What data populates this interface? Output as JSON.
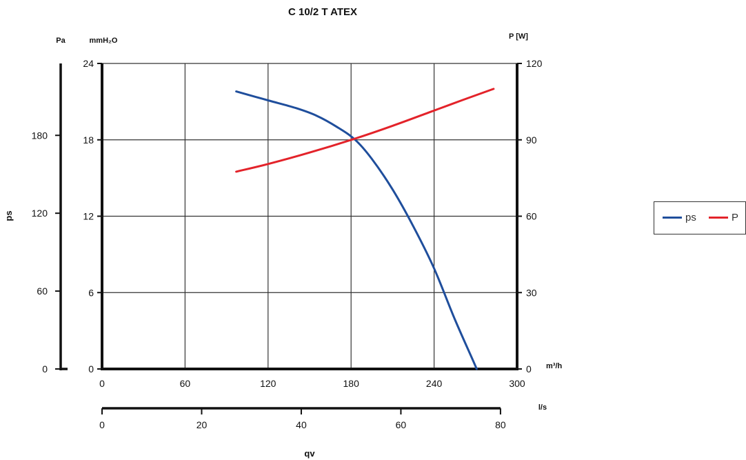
{
  "chart_data": {
    "type": "line",
    "title": "C 10/2 T ATEX",
    "xlabel": "qv",
    "ylabel": "ps",
    "left_unit_pa": "Pa",
    "left_unit_mmh2o": "mmH₂O",
    "right_unit": "P [W]",
    "x_unit_primary": "m³/h",
    "x_unit_secondary": "l/s",
    "xlim": [
      0,
      300
    ],
    "ylim_mmh2o": [
      0,
      24
    ],
    "ylim_pa": [
      0,
      235.4
    ],
    "ylim_power": [
      0,
      120
    ],
    "grid": true,
    "legend_position": "right",
    "x_ticks": [
      0,
      60,
      120,
      180,
      240,
      300
    ],
    "y_ticks_mmh2o": [
      0,
      6,
      12,
      18,
      24
    ],
    "y_ticks_pa": [
      0,
      60,
      120,
      180
    ],
    "y_ticks_power": [
      0,
      30,
      60,
      90,
      120
    ],
    "x2_ticks": [
      0,
      20,
      40,
      60,
      80
    ],
    "series": [
      {
        "name": "ps",
        "axis": "mmH2O",
        "color": "#1f4e9c",
        "x": [
          97,
          120,
          140,
          155,
          170,
          183,
          195,
          210,
          225,
          240,
          255,
          268,
          280
        ],
        "y": [
          21.8,
          21.1,
          20.5,
          19.9,
          19.0,
          18.0,
          16.5,
          14.1,
          11.2,
          7.9,
          3.9,
          0.7,
          -2.3
        ]
      },
      {
        "name": "P",
        "axis": "power",
        "color": "#e3232a",
        "x": [
          97,
          120,
          150,
          183,
          210,
          240,
          260,
          283
        ],
        "y": [
          77.5,
          80.5,
          85.0,
          90.5,
          95.5,
          101.5,
          105.5,
          110.0
        ]
      }
    ]
  }
}
